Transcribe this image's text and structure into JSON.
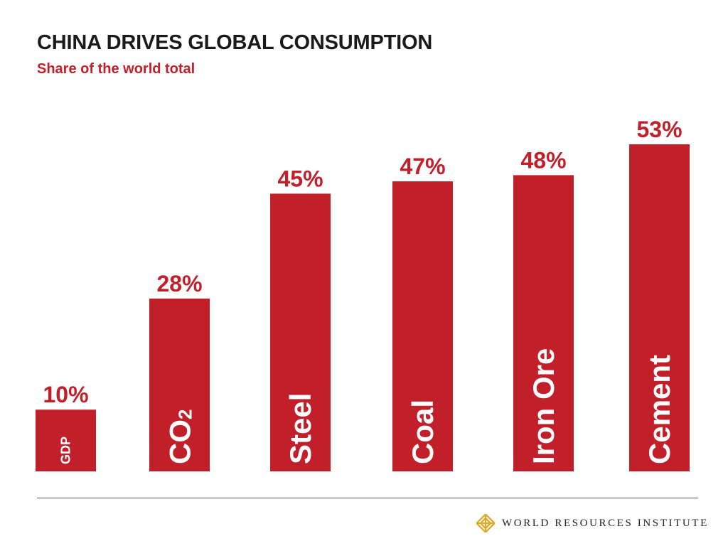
{
  "header": {
    "title": "CHINA DRIVES GLOBAL CONSUMPTION",
    "subtitle": "Share of the world total"
  },
  "footer": {
    "logo_text": "WORLD RESOURCES INSTITUTE",
    "logo_icon": "wri-knot-icon"
  },
  "colors": {
    "bar": "#c1202a",
    "value_label": "#c1202a",
    "category_label": "#ffffff",
    "title": "#1a1a1a",
    "logo_gold": "#e0a824"
  },
  "chart_data": {
    "type": "bar",
    "title": "CHINA DRIVES GLOBAL CONSUMPTION",
    "subtitle": "Share of the world total",
    "xlabel": "",
    "ylabel": "",
    "categories": [
      "GDP",
      "CO2",
      "Steel",
      "Coal",
      "Iron Ore",
      "Cement"
    ],
    "values": [
      10,
      28,
      45,
      47,
      48,
      53
    ],
    "value_labels": [
      "10%",
      "28%",
      "45%",
      "47%",
      "48%",
      "53%"
    ],
    "unit": "%",
    "ylim": [
      0,
      53
    ],
    "grid": false,
    "legend": "none",
    "category_labels_inside_bars": true
  }
}
